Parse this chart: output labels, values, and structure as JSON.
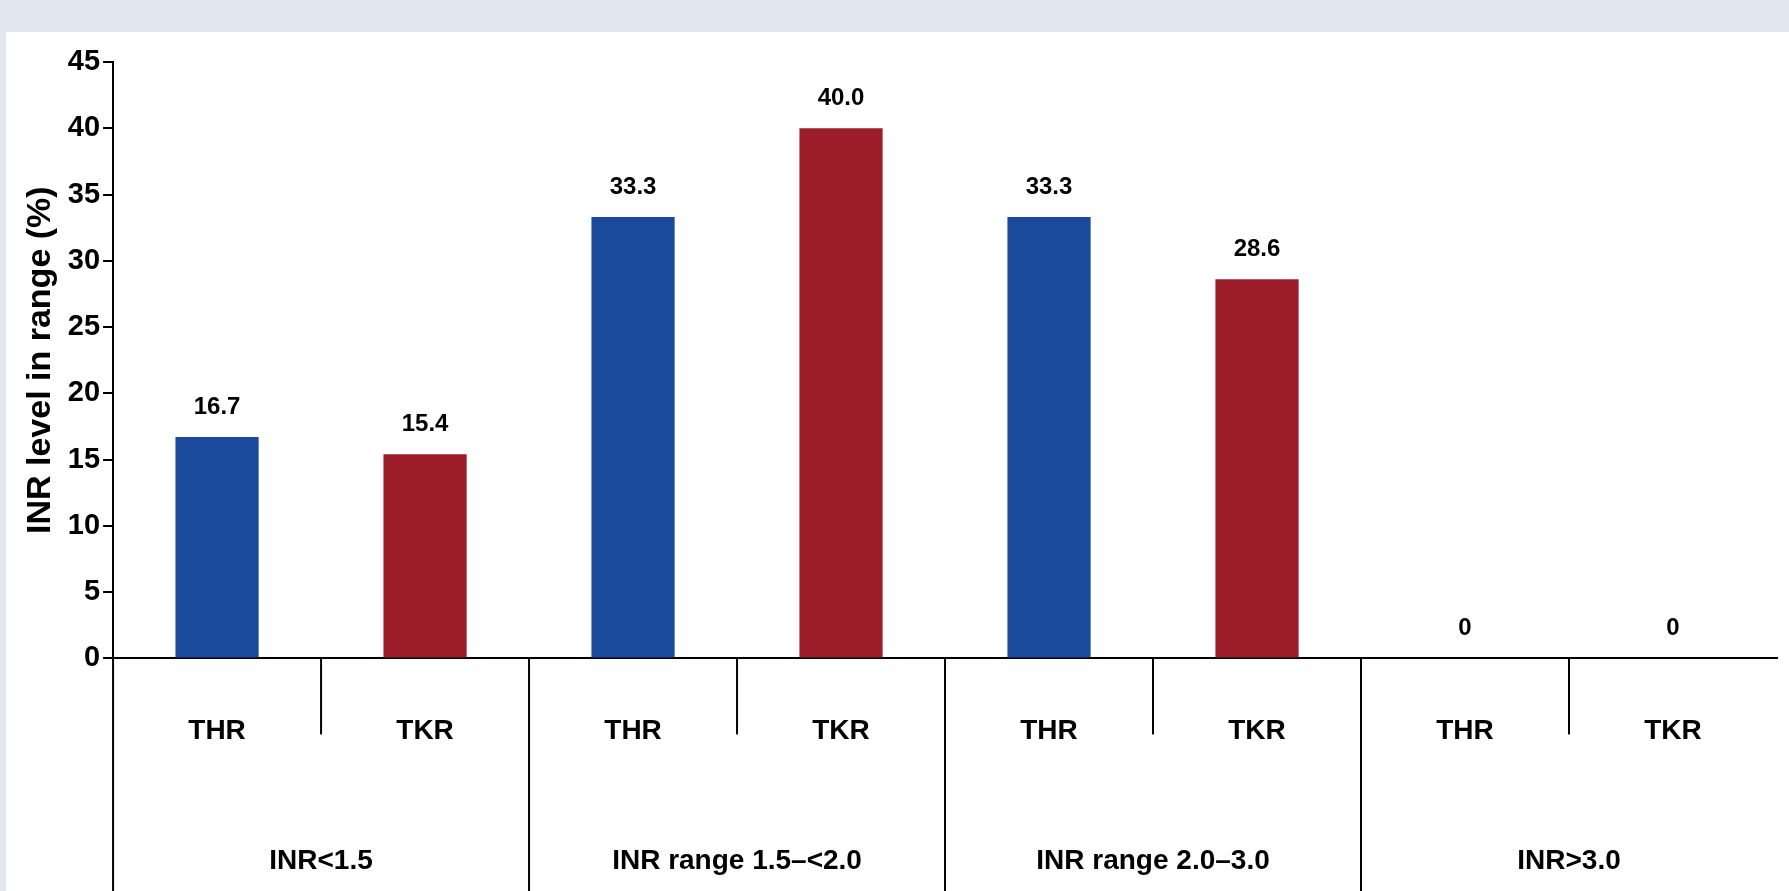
{
  "chart_data": {
    "type": "bar",
    "ylabel": "INR level in range (%)",
    "categories": [
      "THR",
      "TKR",
      "THR",
      "TKR",
      "THR",
      "TKR",
      "THR",
      "TKR"
    ],
    "values": [
      16.7,
      15.4,
      33.3,
      40.0,
      33.3,
      28.6,
      0,
      0
    ],
    "colors": [
      "#1a4a9c",
      "#9c1c2a",
      "#1a4a9c",
      "#9c1c2a",
      "#1a4a9c",
      "#9c1c2a",
      "#1a4a9c",
      "#9c1c2a"
    ],
    "value_labels": [
      "16.7",
      "15.4",
      "33.3",
      "40.0",
      "33.3",
      "28.6",
      "0",
      "0"
    ],
    "annotations": [
      "INR<1.5",
      "INR range 1.5–<2.0",
      "INR range 2.0–3.0",
      "INR>3.0"
    ],
    "ylim": [
      0,
      45
    ],
    "yticks": [
      0,
      5,
      10,
      15,
      20,
      25,
      30,
      35,
      40,
      45
    ],
    "grid": false,
    "legend": false
  }
}
